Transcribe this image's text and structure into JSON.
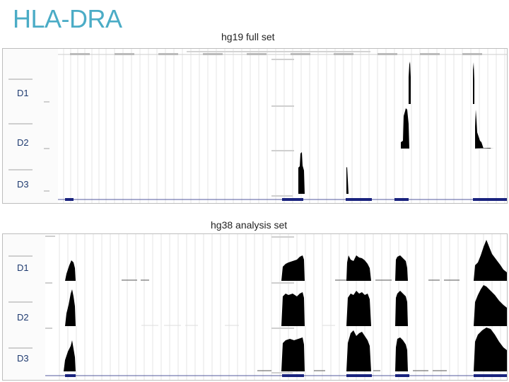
{
  "title": "HLA-DRA",
  "top_panel": {
    "caption": "hg19 full set",
    "tracks": [
      "D1",
      "D2",
      "D3"
    ]
  },
  "bottom_panel": {
    "caption": "hg38 analysis set",
    "tracks": [
      "D1",
      "D2",
      "D3"
    ]
  },
  "colors": {
    "title": "#4bacc6",
    "track_label": "#1f3b70",
    "signal": "#000000",
    "gene_bar": "#1a237e",
    "grid": "#d6d6d6"
  }
}
